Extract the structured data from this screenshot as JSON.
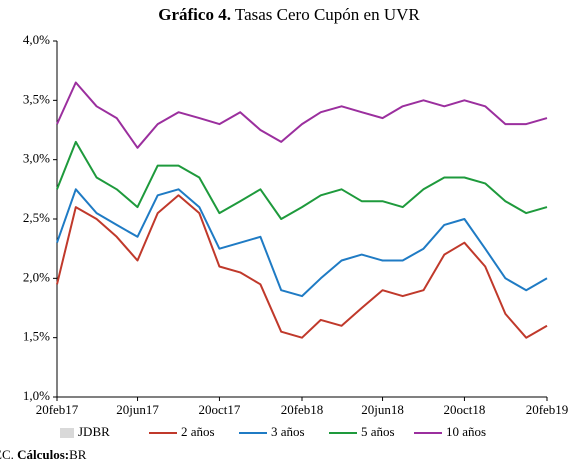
{
  "chart_data": {
    "type": "line",
    "title": {
      "label": "Gráfico 4.",
      "text": "Tasas Cero Cupón en UVR"
    },
    "source": {
      "prefix": "EC.",
      "label": "Cálculos:",
      "text": "BR"
    },
    "x": [
      "2017-02-20",
      "2017-03-20",
      "2017-04-20",
      "2017-05-20",
      "2017-06-20",
      "2017-07-20",
      "2017-08-20",
      "2017-09-20",
      "2017-10-20",
      "2017-11-20",
      "2017-12-20",
      "2018-01-20",
      "2018-02-20",
      "2018-03-20",
      "2018-04-20",
      "2018-05-20",
      "2018-06-20",
      "2018-07-20",
      "2018-08-20",
      "2018-09-20",
      "2018-10-20",
      "2018-11-20",
      "2018-12-20",
      "2019-01-20",
      "2019-02-20"
    ],
    "xlim": [
      "2017-02-20",
      "2019-02-20"
    ],
    "xticks": [
      {
        "value": "2017-02-20",
        "label": "20feb17"
      },
      {
        "value": "2017-06-20",
        "label": "20jun17"
      },
      {
        "value": "2017-10-20",
        "label": "20oct17"
      },
      {
        "value": "2018-02-20",
        "label": "20feb18"
      },
      {
        "value": "2018-06-20",
        "label": "20jun18"
      },
      {
        "value": "2018-10-20",
        "label": "20oct18"
      },
      {
        "value": "2019-02-20",
        "label": "20feb19"
      }
    ],
    "ylim": [
      1,
      4
    ],
    "yticks": [
      {
        "value": 1,
        "label": "1,0%"
      },
      {
        "value": 1.5,
        "label": "1,5%"
      },
      {
        "value": 2,
        "label": "2,0%"
      },
      {
        "value": 2.5,
        "label": "2,5%"
      },
      {
        "value": 3,
        "label": "3,0%"
      },
      {
        "value": 3.5,
        "label": "3,5%"
      },
      {
        "value": 4,
        "label": "4,0%"
      }
    ],
    "grid": false,
    "series": [
      {
        "name": "JDBR",
        "color": "#d9d9d9",
        "kind": "bar",
        "values": [
          null,
          null,
          null,
          null,
          null,
          null,
          null,
          null,
          null,
          null,
          null,
          null,
          null,
          null,
          null,
          null,
          null,
          null,
          null,
          null,
          null,
          null,
          null,
          null,
          null
        ]
      },
      {
        "name": "2 años",
        "color": "#c0392b",
        "values": [
          1.95,
          2.6,
          2.5,
          2.35,
          2.15,
          2.55,
          2.7,
          2.55,
          2.1,
          2.05,
          1.95,
          1.55,
          1.5,
          1.65,
          1.6,
          1.75,
          1.9,
          1.85,
          1.9,
          2.2,
          2.3,
          2.1,
          1.7,
          1.5,
          1.6
        ]
      },
      {
        "name": "3 años",
        "color": "#1f7bc4",
        "values": [
          2.3,
          2.75,
          2.55,
          2.45,
          2.35,
          2.7,
          2.75,
          2.6,
          2.25,
          2.3,
          2.35,
          1.9,
          1.85,
          2.0,
          2.15,
          2.2,
          2.15,
          2.15,
          2.25,
          2.45,
          2.5,
          2.25,
          2.0,
          1.9,
          2.0
        ]
      },
      {
        "name": "5 años",
        "color": "#1e9a3c",
        "values": [
          2.75,
          3.15,
          2.85,
          2.75,
          2.6,
          2.95,
          2.95,
          2.85,
          2.55,
          2.65,
          2.75,
          2.5,
          2.6,
          2.7,
          2.75,
          2.65,
          2.65,
          2.6,
          2.75,
          2.85,
          2.85,
          2.8,
          2.65,
          2.55,
          2.6
        ]
      },
      {
        "name": "10 años",
        "color": "#9b2f9e",
        "values": [
          3.3,
          3.65,
          3.45,
          3.35,
          3.1,
          3.3,
          3.4,
          3.35,
          3.3,
          3.4,
          3.25,
          3.15,
          3.3,
          3.4,
          3.45,
          3.4,
          3.35,
          3.45,
          3.5,
          3.45,
          3.5,
          3.45,
          3.3,
          3.3,
          3.35
        ]
      }
    ]
  }
}
